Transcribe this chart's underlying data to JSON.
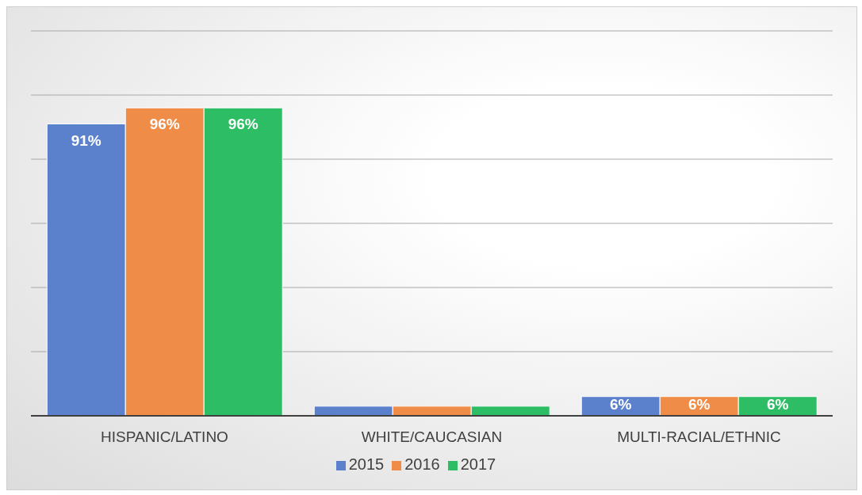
{
  "chart_data": {
    "type": "bar",
    "categories": [
      "HISPANIC/LATINO",
      "WHITE/CAUCASIAN",
      "MULTI-RACIAL/ETHNIC"
    ],
    "series": [
      {
        "name": "2015",
        "color": "#5b80cc",
        "values": [
          91,
          3,
          6
        ],
        "value_labels": [
          "91%",
          null,
          "6%"
        ]
      },
      {
        "name": "2016",
        "color": "#ef8c47",
        "values": [
          96,
          3,
          6
        ],
        "value_labels": [
          "96%",
          null,
          "6%"
        ]
      },
      {
        "name": "2017",
        "color": "#2dbd65",
        "values": [
          96,
          3,
          6
        ],
        "value_labels": [
          "96%",
          null,
          "6%"
        ]
      }
    ],
    "ylim": [
      0,
      120
    ],
    "grid": "y",
    "legend": "bottom",
    "tick_labels": "x"
  }
}
